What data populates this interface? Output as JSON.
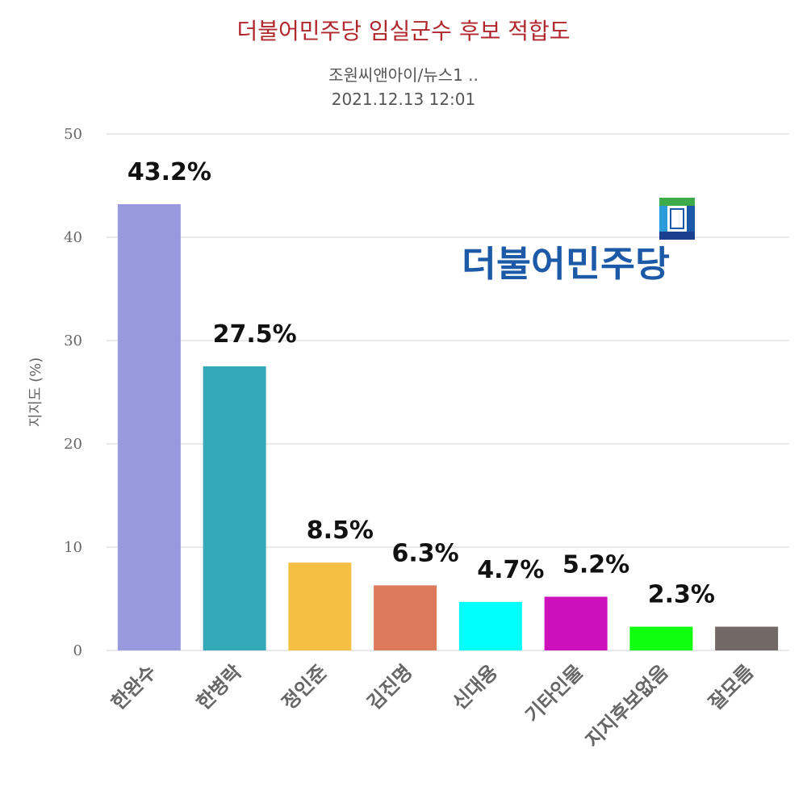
{
  "header": {
    "title": "더불어민주당 임실군수 후보 적합도",
    "subtitle": "조원씨앤아이/뉴스1 ..",
    "date": "2021.12.13 12:01"
  },
  "logo": {
    "text": "더불어민주당",
    "icon": "party-flag-icon"
  },
  "chart_data": {
    "type": "bar",
    "title": "더불어민주당 임실군수 후보 적합도",
    "xlabel": "",
    "ylabel": "지지도 (%)",
    "ylim": [
      0,
      50
    ],
    "yticks": [
      0,
      10,
      20,
      30,
      40,
      50
    ],
    "grid": true,
    "legend": "none",
    "categories": [
      "한완수",
      "한병락",
      "정인준",
      "김진명",
      "신대용",
      "기타인물",
      "지지후보없음",
      "잘모름"
    ],
    "values": [
      43.2,
      27.5,
      8.5,
      6.3,
      4.7,
      5.2,
      2.3,
      2.3
    ],
    "data_labels": [
      "43.2%",
      "27.5%",
      "8.5%",
      "6.3%",
      "4.7%",
      "5.2%",
      "2.3%",
      ""
    ],
    "colors": [
      "#9999dd",
      "#33a9b8",
      "#f4bf42",
      "#dd7a5c",
      "#00ffff",
      "#cc10bb",
      "#11ff11",
      "#726866"
    ]
  },
  "colors": {
    "title": "#b0282d",
    "logo_green": "#3dab4a",
    "logo_blue": "#1c5aa8",
    "logo_navy": "#1b3f8f"
  }
}
